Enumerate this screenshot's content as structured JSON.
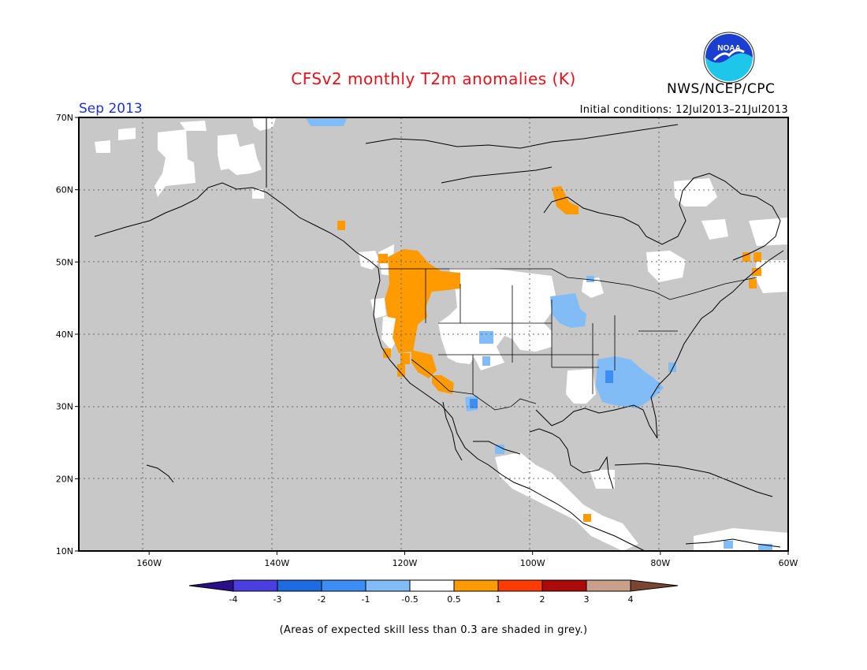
{
  "title": "CFSv2 monthly T2m anomalies (K)",
  "agency": "NWS/NCEP/CPC",
  "logo_text": "NOAA",
  "forecast_month": "Sep 2013",
  "initial_conditions": "Initial conditions: 12Jul2013–21Jul2013",
  "footnote": "(Areas of expected skill less than 0.3 are shaded in grey.)",
  "map": {
    "lat_labels": [
      "70N",
      "60N",
      "50N",
      "40N",
      "30N",
      "20N",
      "10N"
    ],
    "lon_labels": [
      "160W",
      "140W",
      "120W",
      "100W",
      "80W",
      "60W"
    ],
    "lat_values": [
      70,
      60,
      50,
      40,
      30,
      20,
      10
    ],
    "lon_values": [
      -160,
      -140,
      -120,
      -100,
      -80,
      -60
    ],
    "extent": {
      "lon_min": -171,
      "lon_max": -60,
      "lat_min": 10,
      "lat_max": 70
    },
    "grey_fill": "#c8c8c8",
    "coast_color": "#000000"
  },
  "colorbar": {
    "labels": [
      "-4",
      "-3",
      "-2",
      "-1",
      "-0.5",
      "0.5",
      "1",
      "2",
      "3",
      "4"
    ],
    "colors": [
      "#2a0f8a",
      "#4a3ee0",
      "#1e6ae0",
      "#3c8ef5",
      "#82bcf7",
      "#ffffff",
      "#ff9b00",
      "#ff3c00",
      "#aa0a0a",
      "#c8a08c",
      "#7a4632"
    ]
  }
}
